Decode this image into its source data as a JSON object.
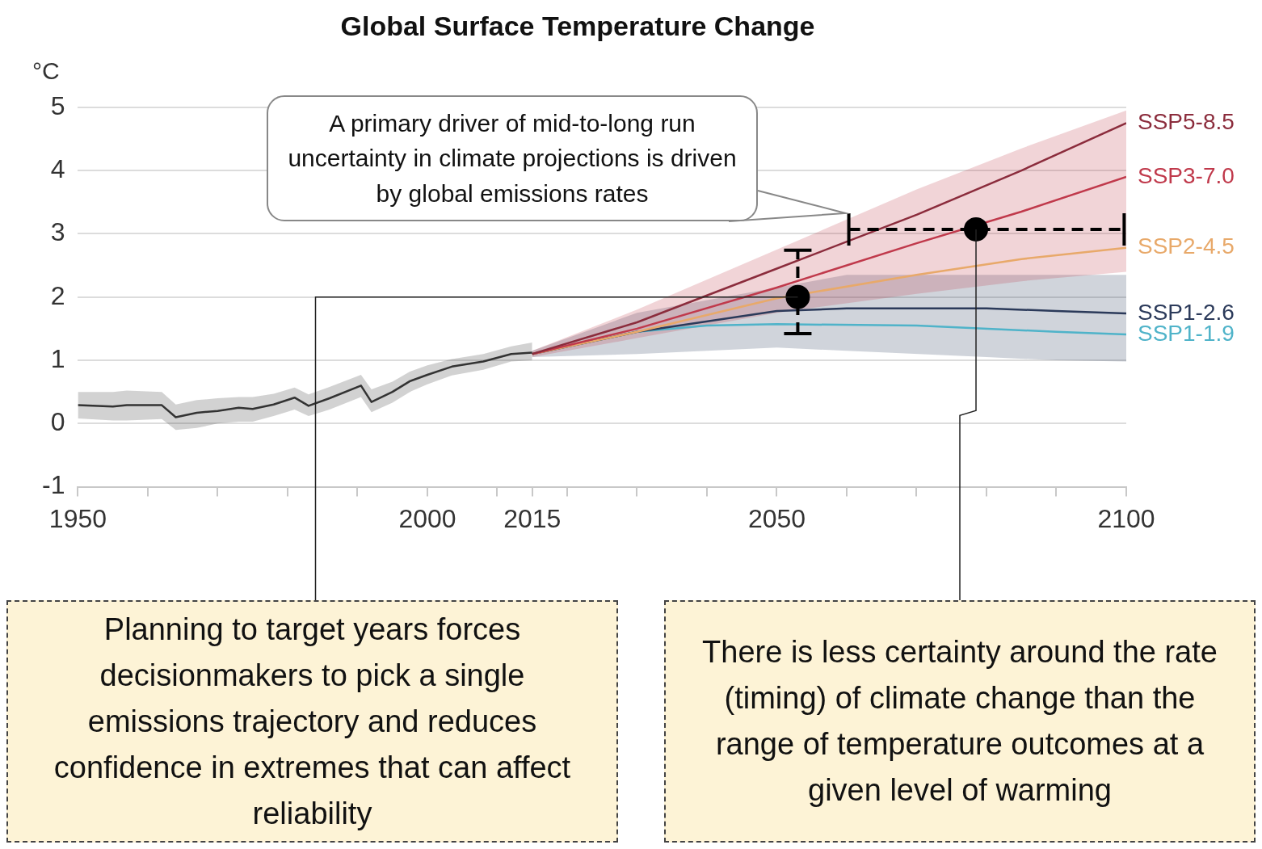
{
  "chart_data": {
    "type": "line",
    "title": "Global Surface Temperature Change",
    "ylabel": "°C",
    "xlim": [
      1950,
      2100
    ],
    "ylim": [
      -1,
      5
    ],
    "xticks": [
      1950,
      {
        "value": 1960,
        "label": null
      },
      {
        "value": 1970,
        "label": null
      },
      {
        "value": 1980,
        "label": null
      },
      {
        "value": 1990,
        "label": null
      },
      2000,
      {
        "value": 2010,
        "label": null
      },
      2015,
      {
        "value": 2020,
        "label": null
      },
      {
        "value": 2030,
        "label": null
      },
      {
        "value": 2040,
        "label": null
      },
      2050,
      {
        "value": 2060,
        "label": null
      },
      {
        "value": 2070,
        "label": null
      },
      {
        "value": 2080,
        "label": null
      },
      {
        "value": 2090,
        "label": null
      },
      2100
    ],
    "yticks": [
      -1,
      0,
      1,
      2,
      3,
      4,
      5
    ],
    "grid": "y",
    "legend": false,
    "marker": "none",
    "series": [
      {
        "color": "#333333",
        "x": [
          1950,
          1955,
          1957,
          1962,
          1964,
          1967,
          1970,
          1973,
          1975,
          1978,
          1981,
          1983,
          1986,
          1990.5,
          1992,
          1995,
          1997.5,
          2000,
          2003.5,
          2008,
          2012,
          2015
        ],
        "values": [
          0.29,
          0.27,
          0.29,
          0.29,
          0.1,
          0.17,
          0.2,
          0.25,
          0.23,
          0.3,
          0.41,
          0.28,
          0.4,
          0.6,
          0.34,
          0.5,
          0.67,
          0.77,
          0.9,
          0.98,
          1.1,
          1.12
        ],
        "lower": [
          0.08,
          0.05,
          0.05,
          0.07,
          -0.1,
          -0.07,
          0.0,
          0.03,
          0.03,
          0.12,
          0.22,
          0.12,
          0.22,
          0.42,
          0.18,
          0.33,
          0.5,
          0.62,
          0.76,
          0.85,
          0.98,
          1.0
        ],
        "upper": [
          0.5,
          0.5,
          0.52,
          0.5,
          0.3,
          0.37,
          0.4,
          0.42,
          0.42,
          0.47,
          0.57,
          0.46,
          0.58,
          0.77,
          0.54,
          0.66,
          0.82,
          0.92,
          1.02,
          1.1,
          1.22,
          1.28
        ]
      },
      {
        "name": "SSP5-8.5",
        "color": "#8b2c3c",
        "x": [
          2015,
          2030,
          2050,
          2070,
          2085,
          2100
        ],
        "values": [
          1.1,
          1.6,
          2.45,
          3.3,
          4.0,
          4.75
        ]
      },
      {
        "name": "SSP3-7.0",
        "color": "#c0394b",
        "x": [
          2015,
          2030,
          2050,
          2070,
          2085,
          2100
        ],
        "values": [
          1.1,
          1.5,
          2.15,
          2.85,
          3.35,
          3.9
        ],
        "lower": [
          1.05,
          1.35,
          1.75,
          2.05,
          2.25,
          2.4
        ],
        "upper": [
          1.15,
          1.8,
          2.75,
          3.7,
          4.35,
          4.95
        ]
      },
      {
        "name": "SSP2-4.5",
        "color": "#e8a96a",
        "x": [
          2015,
          2030,
          2050,
          2070,
          2085,
          2100
        ],
        "values": [
          1.1,
          1.45,
          1.98,
          2.35,
          2.6,
          2.78
        ]
      },
      {
        "name": "SSP1-2.6",
        "color": "#2b3a5a",
        "x": [
          2015,
          2030,
          2050,
          2060,
          2080,
          2090,
          2100
        ],
        "values": [
          1.1,
          1.45,
          1.78,
          1.82,
          1.82,
          1.78,
          1.74
        ],
        "lower": [
          1.05,
          1.1,
          1.2,
          1.15,
          1.05,
          1.0,
          0.98
        ],
        "upper": [
          1.15,
          1.75,
          2.15,
          2.35,
          2.35,
          2.35,
          2.35
        ]
      },
      {
        "name": "SSP1-1.9",
        "color": "#4fb3c9",
        "x": [
          2015,
          2030,
          2040,
          2050,
          2070,
          2090,
          2100
        ],
        "values": [
          1.1,
          1.45,
          1.55,
          1.57,
          1.55,
          1.45,
          1.41
        ]
      },
      {
        "type": "scatter",
        "color": "#000000",
        "marker": "circle",
        "x": [
          2053
        ],
        "values": [
          2.0
        ],
        "errors": [
          [
            1.42,
            2.74
          ]
        ]
      },
      {
        "type": "scatter",
        "color": "#000000",
        "marker": "circle",
        "x": [
          2078.5
        ],
        "values": [
          3.07
        ],
        "xerrors": [
          [
            2060.3,
            2099.7
          ]
        ]
      }
    ],
    "annotations": [
      "A primary driver of mid-to-long run uncertainty in climate projections is driven by global emissions rates",
      {
        "text": "Planning to target years forces decisionmakers to pick a single emissions trajectory and reduces confidence in extremes that can affect reliability",
        "x": 2053,
        "y": 2.0
      },
      {
        "text": "There is less certainty around the rate (timing) of climate change than the range of temperature outcomes at a given level of warming",
        "x": 2078.5,
        "y": 3.07
      }
    ]
  }
}
